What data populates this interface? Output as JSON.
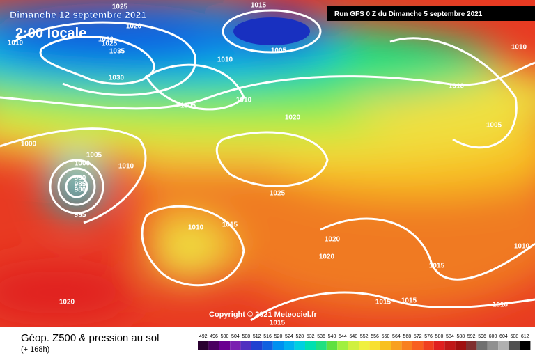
{
  "header": {
    "date": "Dimanche 12 septembre 2021",
    "time": "2:00 locale",
    "run": "Run GFS 0 Z du Dimanche 5 septembre 2021"
  },
  "copyright": "Copyright © 2021 Meteociel.fr",
  "footer": {
    "title": "Géop. Z500 & pression au sol",
    "lead": "(+ 168h)"
  },
  "isobar_labels": [
    "1015",
    "1025",
    "1020",
    "1010",
    "1030",
    "1025",
    "1035",
    "1030",
    "1005",
    "1010",
    "1010",
    "1010",
    "1005",
    "1010",
    "1005",
    "1020",
    "1000",
    "1005",
    "1010",
    "1000",
    "990",
    "985",
    "980",
    "995",
    "1025",
    "1010",
    "1015",
    "1020",
    "1020",
    "1010",
    "1015",
    "1015",
    "1015",
    "1010",
    "1020",
    "1015"
  ],
  "legend": {
    "values": [
      492,
      496,
      500,
      504,
      508,
      512,
      516,
      520,
      524,
      528,
      532,
      536,
      540,
      544,
      548,
      552,
      556,
      560,
      564,
      568,
      572,
      576,
      580,
      584,
      588,
      592,
      596,
      600,
      604,
      608,
      612
    ],
    "colors": [
      "#2a0030",
      "#4a0060",
      "#6a0090",
      "#7a20b0",
      "#5030c0",
      "#2040d0",
      "#1060e0",
      "#0090f0",
      "#00b0f0",
      "#00d0e0",
      "#00e0b0",
      "#20e080",
      "#60e040",
      "#a0f040",
      "#d0f040",
      "#f0f040",
      "#f8e030",
      "#f8c020",
      "#f8a020",
      "#f88020",
      "#f86020",
      "#f04020",
      "#e02020",
      "#c01818",
      "#a01010",
      "#803030",
      "#707070",
      "#909090",
      "#b0b0b0",
      "#505050",
      "#000000"
    ]
  }
}
